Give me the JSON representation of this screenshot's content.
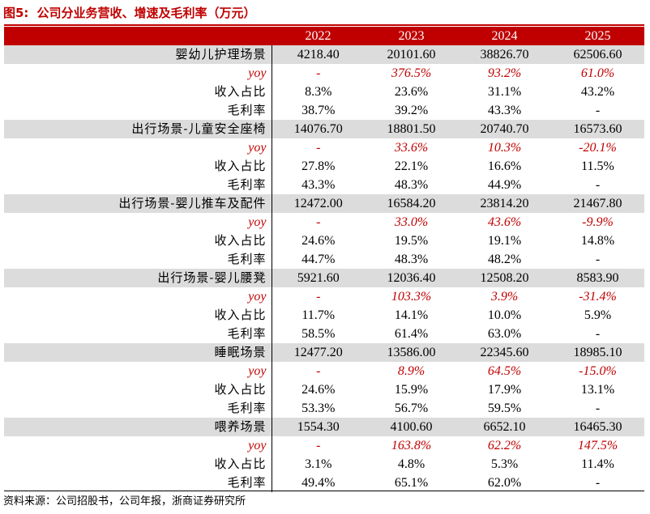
{
  "title": {
    "figure_label": "图5:",
    "text": "公司分业务营收、增速及毛利率（万元）"
  },
  "table": {
    "header": [
      "",
      "2022",
      "2023",
      "2024",
      "2025"
    ],
    "rows": [
      {
        "type": "segment",
        "label": "婴幼儿护理场景",
        "values": [
          "4218.40",
          "20101.60",
          "38826.70",
          "62506.60"
        ]
      },
      {
        "type": "yoy",
        "label": "yoy",
        "values": [
          "-",
          "376.5%",
          "93.2%",
          "61.0%"
        ]
      },
      {
        "type": "metric",
        "label": "收入占比",
        "values": [
          "8.3%",
          "23.6%",
          "31.1%",
          "43.2%"
        ]
      },
      {
        "type": "metric",
        "label": "毛利率",
        "values": [
          "38.7%",
          "39.2%",
          "43.3%",
          "-"
        ]
      },
      {
        "type": "segment",
        "label": "出行场景-儿童安全座椅",
        "values": [
          "14076.70",
          "18801.50",
          "20740.70",
          "16573.60"
        ]
      },
      {
        "type": "yoy",
        "label": "yoy",
        "values": [
          "-",
          "33.6%",
          "10.3%",
          "-20.1%"
        ]
      },
      {
        "type": "metric",
        "label": "收入占比",
        "values": [
          "27.8%",
          "22.1%",
          "16.6%",
          "11.5%"
        ]
      },
      {
        "type": "metric",
        "label": "毛利率",
        "values": [
          "43.3%",
          "48.3%",
          "44.9%",
          "-"
        ]
      },
      {
        "type": "segment",
        "label": "出行场景-婴儿推车及配件",
        "values": [
          "12472.00",
          "16584.20",
          "23814.20",
          "21467.80"
        ]
      },
      {
        "type": "yoy",
        "label": "yoy",
        "values": [
          "-",
          "33.0%",
          "43.6%",
          "-9.9%"
        ]
      },
      {
        "type": "metric",
        "label": "收入占比",
        "values": [
          "24.6%",
          "19.5%",
          "19.1%",
          "14.8%"
        ]
      },
      {
        "type": "metric",
        "label": "毛利率",
        "values": [
          "44.7%",
          "48.3%",
          "48.2%",
          "-"
        ]
      },
      {
        "type": "segment",
        "label": "出行场景-婴儿腰凳",
        "values": [
          "5921.60",
          "12036.40",
          "12508.20",
          "8583.90"
        ]
      },
      {
        "type": "yoy",
        "label": "yoy",
        "values": [
          "-",
          "103.3%",
          "3.9%",
          "-31.4%"
        ]
      },
      {
        "type": "metric",
        "label": "收入占比",
        "values": [
          "11.7%",
          "14.1%",
          "10.0%",
          "5.9%"
        ]
      },
      {
        "type": "metric",
        "label": "毛利率",
        "values": [
          "58.5%",
          "61.4%",
          "63.0%",
          "-"
        ]
      },
      {
        "type": "segment",
        "label": "睡眠场景",
        "values": [
          "12477.20",
          "13586.00",
          "22345.60",
          "18985.10"
        ]
      },
      {
        "type": "yoy",
        "label": "yoy",
        "values": [
          "-",
          "8.9%",
          "64.5%",
          "-15.0%"
        ]
      },
      {
        "type": "metric",
        "label": "收入占比",
        "values": [
          "24.6%",
          "15.9%",
          "17.9%",
          "13.1%"
        ]
      },
      {
        "type": "metric",
        "label": "毛利率",
        "values": [
          "53.3%",
          "56.7%",
          "59.5%",
          "-"
        ]
      },
      {
        "type": "segment",
        "label": "喂养场景",
        "values": [
          "1554.30",
          "4100.60",
          "6652.10",
          "16465.30"
        ]
      },
      {
        "type": "yoy",
        "label": "yoy",
        "values": [
          "-",
          "163.8%",
          "62.2%",
          "147.5%"
        ]
      },
      {
        "type": "metric",
        "label": "收入占比",
        "values": [
          "3.1%",
          "4.8%",
          "5.3%",
          "11.4%"
        ]
      },
      {
        "type": "metric",
        "label": "毛利率",
        "values": [
          "49.4%",
          "65.1%",
          "62.0%",
          "-"
        ]
      }
    ]
  },
  "source": "资料来源：公司招股书，公司年报，浙商证券研究所",
  "colors": {
    "accent_red": "#c00000",
    "segment_row_gray": "#dcdcdc",
    "header_text": "#ffffff"
  }
}
